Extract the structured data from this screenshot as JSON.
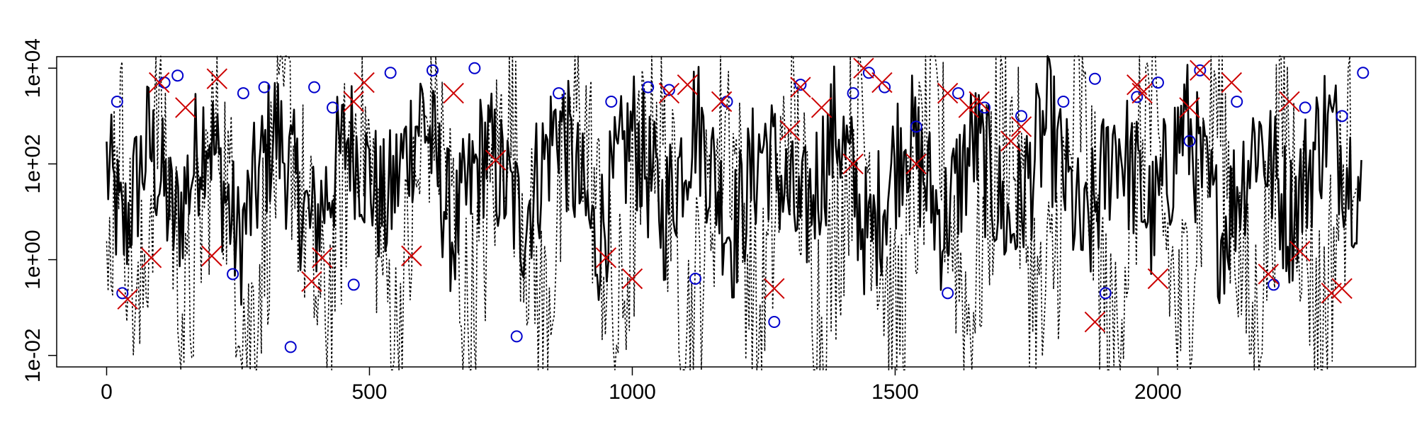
{
  "chart_data": {
    "type": "line",
    "title": "",
    "xlabel": "",
    "ylabel": "",
    "x_range": [
      0,
      2400
    ],
    "y_scale": "log10",
    "y_range": [
      0.01,
      10000
    ],
    "x_ticks": [
      0,
      500,
      1000,
      1500,
      2000
    ],
    "x_tick_labels": [
      "0",
      "500",
      "1000",
      "1500",
      "2000"
    ],
    "y_ticks": [
      0.01,
      1,
      100,
      10000
    ],
    "y_tick_labels": [
      "1e-02",
      "1e+00",
      "1e+02",
      "1e+04"
    ],
    "grid": false,
    "legend": "none",
    "series": [
      {
        "style": "solid",
        "color": "#000000",
        "x": [
          0,
          30,
          80,
          130,
          190,
          250,
          320,
          390,
          460,
          530,
          600,
          660,
          720,
          790,
          860,
          930,
          1000,
          1060,
          1120,
          1190,
          1250,
          1320,
          1390,
          1450,
          1520,
          1590,
          1650,
          1720,
          1790,
          1860,
          1920,
          1990,
          2050,
          2120,
          2190,
          2250,
          2320,
          2390
        ],
        "y": [
          100,
          3,
          300,
          5,
          800,
          2,
          600,
          4,
          400,
          10,
          1500,
          3,
          250,
          6,
          900,
          2,
          500,
          8,
          1000,
          3,
          300,
          5,
          700,
          2,
          600,
          5,
          300,
          4,
          800,
          2,
          400,
          6,
          900,
          3,
          500,
          7,
          800,
          20
        ]
      },
      {
        "style": "dotted",
        "color": "#000000",
        "x": [
          0,
          20,
          60,
          100,
          150,
          210,
          270,
          340,
          410,
          480,
          550,
          620,
          690,
          760,
          830,
          900,
          970,
          1040,
          1110,
          1180,
          1240,
          1300,
          1360,
          1430,
          1500,
          1570,
          1640,
          1710,
          1780,
          1850,
          1910,
          1980,
          2040,
          2110,
          2180,
          2240,
          2310,
          2380
        ],
        "y": [
          0.05,
          2000,
          0.02,
          3000,
          0.03,
          1500,
          0.02,
          2500,
          0.04,
          3000,
          0.02,
          5000,
          0.03,
          2000,
          0.05,
          3000,
          0.02,
          4000,
          0.03,
          2000,
          0.02,
          1500,
          0.04,
          3000,
          0.02,
          2500,
          0.05,
          2000,
          0.03,
          3000,
          0.01,
          2500,
          0.03,
          4000,
          0.02,
          2000,
          0.04,
          3000
        ]
      },
      {
        "style": "circle",
        "color": "#0000cc",
        "x": [
          20,
          110,
          135,
          260,
          300,
          395,
          430,
          540,
          620,
          700,
          860,
          960,
          1030,
          1070,
          1180,
          1320,
          1420,
          1450,
          1480,
          1540,
          1620,
          1670,
          1740,
          1820,
          1880,
          1960,
          2000,
          2060,
          2080,
          2150,
          2280,
          2350,
          2390,
          30,
          240,
          350,
          470,
          780,
          1120,
          1270,
          1600,
          1900,
          2220
        ],
        "y": [
          2000,
          5000,
          7000,
          3000,
          4000,
          4000,
          1500,
          8000,
          9000,
          10000,
          3000,
          2000,
          4000,
          3500,
          2000,
          4500,
          3000,
          8000,
          4000,
          600,
          3000,
          1500,
          1000,
          2000,
          6000,
          2500,
          5000,
          300,
          9000,
          2000,
          1500,
          1000,
          8000,
          0.2,
          0.5,
          0.015,
          0.3,
          0.025,
          0.4,
          0.05,
          0.2,
          0.2,
          0.3
        ]
      },
      {
        "style": "cross",
        "color": "#cc0000",
        "x": [
          40,
          85,
          100,
          150,
          200,
          210,
          390,
          410,
          470,
          490,
          580,
          660,
          740,
          950,
          1000,
          1070,
          1105,
          1170,
          1270,
          1300,
          1320,
          1360,
          1420,
          1440,
          1475,
          1540,
          1600,
          1640,
          1660,
          1720,
          1740,
          1880,
          1960,
          1970,
          2000,
          2060,
          2080,
          2140,
          2210,
          2250,
          2270,
          2330,
          2350
        ],
        "y": [
          0.15,
          1.1,
          5000,
          1500,
          1.2,
          6000,
          0.35,
          1.1,
          2000,
          5000,
          1.2,
          3000,
          120,
          1.1,
          0.4,
          3000,
          4500,
          2000,
          0.25,
          500,
          4000,
          1500,
          100,
          10000,
          5000,
          100,
          3000,
          1500,
          2000,
          300,
          600,
          0.05,
          4500,
          3000,
          0.4,
          1500,
          9000,
          5000,
          0.5,
          2000,
          1.5,
          0.2,
          0.25
        ]
      }
    ]
  }
}
